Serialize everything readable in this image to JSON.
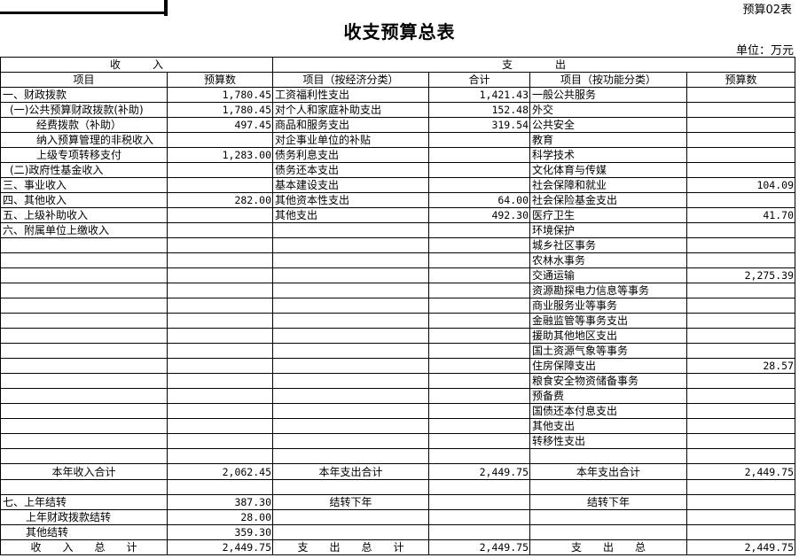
{
  "header": {
    "form_no": "预算02表",
    "title": "收支预算总表",
    "unit": "单位：万元"
  },
  "table": {
    "group_income": "收　　　入",
    "group_expense": "支　　　　出",
    "columns": [
      "项目",
      "预算数",
      "项目（按经济分类）",
      "合计",
      "项目（按功能分类）",
      "预算数"
    ],
    "rows": [
      [
        "一、财政拨款",
        "1,780.45",
        "工资福利性支出",
        "1,421.43",
        "一般公共服务",
        ""
      ],
      [
        "(一)公共预算财政拨款(补助)",
        "1,780.45",
        "对个人和家庭补助支出",
        "152.48",
        "外交",
        ""
      ],
      [
        "经费拨款（补助）",
        "497.45",
        "商品和服务支出",
        "319.54",
        "公共安全",
        ""
      ],
      [
        "纳入预算管理的非税收入",
        "",
        "对企事业单位的补贴",
        "",
        "教育",
        ""
      ],
      [
        "上级专项转移支付",
        "1,283.00",
        "债务利息支出",
        "",
        "科学技术",
        ""
      ],
      [
        "(二)政府性基金收入",
        "",
        "债务还本支出",
        "",
        "文化体育与传媒",
        ""
      ],
      [
        "三、事业收入",
        "",
        "基本建设支出",
        "",
        "社会保障和就业",
        "104.09"
      ],
      [
        "四、其他收入",
        "282.00",
        "其他资本性支出",
        "64.00",
        "社会保险基金支出",
        ""
      ],
      [
        "五、上级补助收入",
        "",
        "其他支出",
        "492.30",
        "医疗卫生",
        "41.70"
      ],
      [
        "六、附属单位上缴收入",
        "",
        "",
        "",
        "环境保护",
        ""
      ],
      [
        "",
        "",
        "",
        "",
        "城乡社区事务",
        ""
      ],
      [
        "",
        "",
        "",
        "",
        "农林水事务",
        ""
      ],
      [
        "",
        "",
        "",
        "",
        "交通运输",
        "2,275.39"
      ],
      [
        "",
        "",
        "",
        "",
        "资源勘探电力信息等事务",
        ""
      ],
      [
        "",
        "",
        "",
        "",
        "商业服务业等事务",
        ""
      ],
      [
        "",
        "",
        "",
        "",
        "金融监管等事务支出",
        ""
      ],
      [
        "",
        "",
        "",
        "",
        "援助其他地区支出",
        ""
      ],
      [
        "",
        "",
        "",
        "",
        "国土资源气象等事务",
        ""
      ],
      [
        "",
        "",
        "",
        "",
        "住房保障支出",
        "28.57"
      ],
      [
        "",
        "",
        "",
        "",
        "粮食安全物资储备事务",
        ""
      ],
      [
        "",
        "",
        "",
        "",
        "预备费",
        ""
      ],
      [
        "",
        "",
        "",
        "",
        "国债还本付息支出",
        ""
      ],
      [
        "",
        "",
        "",
        "",
        "其他支出",
        ""
      ],
      [
        "",
        "",
        "",
        "",
        "转移性支出",
        ""
      ],
      [
        "",
        "",
        "",
        "",
        "",
        ""
      ],
      [
        "本年收入合计",
        "2,062.45",
        "本年支出合计",
        "2,449.75",
        "本年支出合计",
        "2,449.75"
      ],
      [
        "",
        "",
        "",
        "",
        "",
        ""
      ],
      [
        "七、上年结转",
        "387.30",
        "结转下年",
        "",
        "结转下年",
        ""
      ],
      [
        "上年财政拨款结转",
        "28.00",
        "",
        "",
        "",
        ""
      ],
      [
        "其他结转",
        "359.30",
        "",
        "",
        "",
        ""
      ],
      [
        "收　　入　　总　　计",
        "2,449.75",
        "支　　出　　总　　计",
        "2,449.75",
        "支　　出　　总",
        "2,449.75"
      ]
    ]
  }
}
